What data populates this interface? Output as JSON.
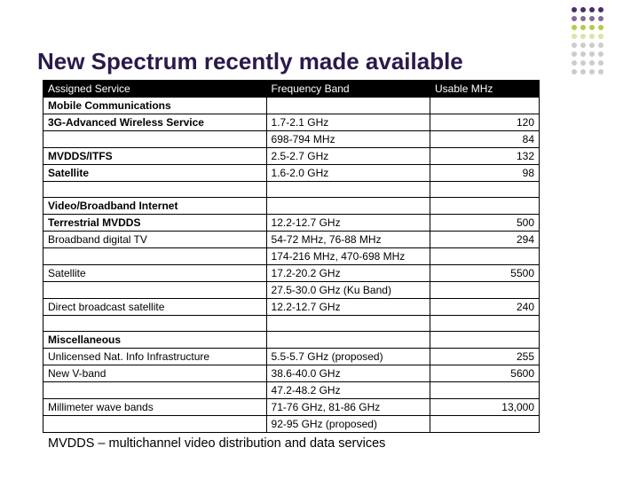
{
  "title": "New Spectrum recently made available",
  "footnote": "MVDDS – multichannel video distribution and data services",
  "dot_colors": {
    "purple_dark": "#4a2d6b",
    "green": "#b5c94a",
    "grey": "#cccccc"
  },
  "table": {
    "columns": [
      "Assigned Service",
      "Frequency Band",
      "Usable MHz"
    ],
    "column_widths_pct": [
      45,
      33,
      22
    ],
    "header_bg": "#000000",
    "header_fg": "#ffffff",
    "border_color": "#000000",
    "rows": [
      {
        "service": "Mobile Communications",
        "freq": "",
        "mhz": "",
        "bold": true
      },
      {
        "service": "3G-Advanced Wireless Service",
        "freq": "1.7-2.1 GHz",
        "mhz": "120",
        "bold": true
      },
      {
        "service": "",
        "freq": "698-794 MHz",
        "mhz": "84"
      },
      {
        "service": "MVDDS/ITFS",
        "freq": "2.5-2.7 GHz",
        "mhz": "132",
        "bold": true
      },
      {
        "service": "Satellite",
        "freq": "1.6-2.0 GHz",
        "mhz": "98",
        "bold": true
      },
      {
        "service": "",
        "freq": "",
        "mhz": ""
      },
      {
        "service": "Video/Broadband Internet",
        "freq": "",
        "mhz": "",
        "bold": true
      },
      {
        "service": "Terrestrial MVDDS",
        "freq": "12.2-12.7 GHz",
        "mhz": "500",
        "bold": true
      },
      {
        "service": "Broadband digital TV",
        "freq": "54-72 MHz, 76-88 MHz",
        "mhz": "294"
      },
      {
        "service": "",
        "freq": "174-216 MHz, 470-698 MHz",
        "mhz": ""
      },
      {
        "service": "Satellite",
        "freq": "17.2-20.2 GHz",
        "mhz": "5500"
      },
      {
        "service": "",
        "freq": "27.5-30.0 GHz (Ku Band)",
        "mhz": ""
      },
      {
        "service": "Direct broadcast satellite",
        "freq": "12.2-12.7 GHz",
        "mhz": "240"
      },
      {
        "service": "",
        "freq": "",
        "mhz": ""
      },
      {
        "service": "Miscellaneous",
        "freq": "",
        "mhz": "",
        "bold": true
      },
      {
        "service": "Unlicensed Nat. Info Infrastructure",
        "freq": "5.5-5.7 GHz (proposed)",
        "mhz": "255"
      },
      {
        "service": "New V-band",
        "freq": "38.6-40.0 GHz",
        "mhz": "5600"
      },
      {
        "service": "",
        "freq": "47.2-48.2 GHz",
        "mhz": ""
      },
      {
        "service": "Millimeter wave bands",
        "freq": "71-76 GHz, 81-86 GHz",
        "mhz": "13,000"
      },
      {
        "service": "",
        "freq": "92-95 GHz (proposed)",
        "mhz": ""
      }
    ]
  }
}
